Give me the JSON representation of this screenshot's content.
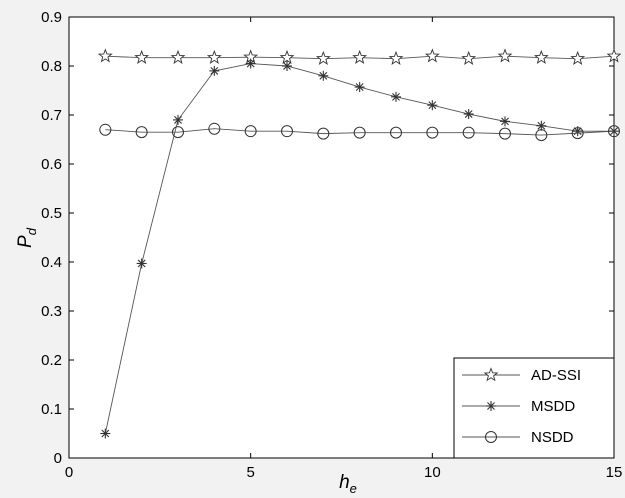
{
  "chart_data": {
    "type": "line",
    "xlabel": "h",
    "xlabel_sub": "e",
    "ylabel": "P",
    "ylabel_sub": "d",
    "xlim": [
      0,
      15
    ],
    "ylim": [
      0,
      0.9
    ],
    "xticks": [
      0,
      5,
      10,
      15
    ],
    "yticks": [
      0,
      0.1,
      0.2,
      0.3,
      0.4,
      0.5,
      0.6,
      0.7,
      0.8,
      0.9
    ],
    "ytick_labels": [
      "0",
      "0.1",
      "0.2",
      "0.3",
      "0.4",
      "0.5",
      "0.6",
      "0.7",
      "0.8",
      "0.9"
    ],
    "grid": false,
    "legend_position": "bottom-right",
    "x": [
      1,
      2,
      3,
      4,
      5,
      6,
      7,
      8,
      9,
      10,
      11,
      12,
      13,
      14,
      15
    ],
    "series": [
      {
        "name": "AD-SSI",
        "marker": "star",
        "values": [
          0.82,
          0.817,
          0.817,
          0.817,
          0.818,
          0.817,
          0.815,
          0.817,
          0.815,
          0.82,
          0.815,
          0.82,
          0.817,
          0.815,
          0.82
        ]
      },
      {
        "name": "MSDD",
        "marker": "asterisk",
        "values": [
          0.05,
          0.397,
          0.69,
          0.79,
          0.805,
          0.8,
          0.78,
          0.757,
          0.737,
          0.72,
          0.702,
          0.687,
          0.678,
          0.667,
          0.667
        ]
      },
      {
        "name": "NSDD",
        "marker": "circle",
        "values": [
          0.67,
          0.665,
          0.665,
          0.672,
          0.667,
          0.667,
          0.662,
          0.664,
          0.664,
          0.664,
          0.664,
          0.662,
          0.659,
          0.663,
          0.667
        ]
      }
    ],
    "colors": {
      "line": "#555555",
      "marker": "#333333",
      "axis": "#000000",
      "plot_bg": "#ffffff",
      "page_bg": "#f2f2f2"
    }
  }
}
